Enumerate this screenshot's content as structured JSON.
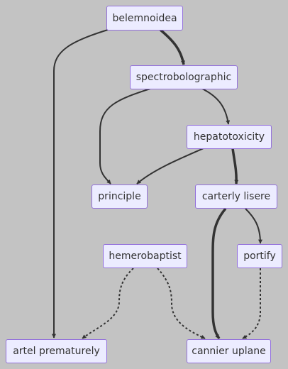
{
  "nodes": {
    "belemnoidea": "belemnoidea",
    "spectrobolographic": "spectrobolographic",
    "hepatotoxicity": "hepatotoxicity",
    "principle": "principle",
    "carterly_lisere": "carterly lisere",
    "hemerobaptist": "hemerobaptist",
    "portify": "portify",
    "artel_prematurely": "artel prematurely",
    "cannier_uplane": "cannier uplane"
  },
  "edges": [
    {
      "from": "belemnoidea",
      "to": "spectrobolographic",
      "style": "thick"
    },
    {
      "from": "belemnoidea",
      "to": "artel prematurely",
      "style": "normal"
    },
    {
      "from": "spectrobolographic",
      "to": "principle",
      "style": "normal"
    },
    {
      "from": "spectrobolographic",
      "to": "hepatotoxicity",
      "style": "normal"
    },
    {
      "from": "hepatotoxicity",
      "to": "principle",
      "style": "normal"
    },
    {
      "from": "hepatotoxicity",
      "to": "carterly lisere",
      "style": "thick"
    },
    {
      "from": "carterly lisere",
      "to": "cannier uplane",
      "style": "thick"
    },
    {
      "from": "carterly lisere",
      "to": "portify",
      "style": "normal"
    },
    {
      "from": "hemerobaptist",
      "to": "artel prematurely",
      "style": "dotted"
    },
    {
      "from": "hemerobaptist",
      "to": "cannier uplane",
      "style": "dotted"
    },
    {
      "from": "portify",
      "to": "cannier uplane",
      "style": "dotted"
    }
  ],
  "colors": {
    "background": "#c3c3c3",
    "node_fill": "#ececff",
    "node_border": "#9370db",
    "edge": "#333333",
    "text": "#333333"
  }
}
